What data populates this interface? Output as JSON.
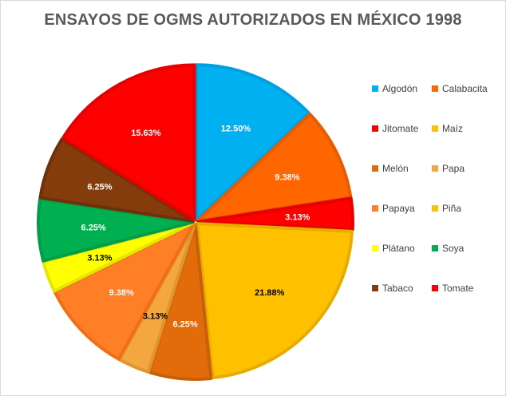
{
  "chart_data": {
    "type": "pie",
    "title": "ENSAYOS DE OGMS AUTORIZADOS EN MÉXICO  1998",
    "categories": [
      "Algodón",
      "Calabacita",
      "Jitomate",
      "Maíz",
      "Melón",
      "Papa",
      "Papaya",
      "Piña",
      "Plátano",
      "Soya",
      "Tabaco",
      "Tomate"
    ],
    "values": [
      12.5,
      9.38,
      3.13,
      21.88,
      6.25,
      3.13,
      9.38,
      0,
      3.13,
      6.25,
      6.25,
      15.63
    ],
    "labels": [
      "12.50%",
      "9.38%",
      "3.13%",
      "21.88%",
      "6.25%",
      "3.13%",
      "9.38%",
      "",
      "3.13%",
      "6.25%",
      "6.25%",
      "15.63%"
    ],
    "colors": [
      "#00b0f0",
      "#ff6600",
      "#ff0000",
      "#ffc000",
      "#e26b0a",
      "#f4a641",
      "#ff7f27",
      "#ffc000",
      "#ffff00",
      "#00b050",
      "#843c0c",
      "#ff0000"
    ],
    "border_colors": [
      "#00a0e0",
      "#e65c00",
      "#e60000",
      "#e6ad00",
      "#c95f08",
      "#e0952e",
      "#f06e15",
      "#e6ad00",
      "#e6e600",
      "#009e48",
      "#6e320a",
      "#e60000"
    ],
    "legend_position": "right"
  }
}
